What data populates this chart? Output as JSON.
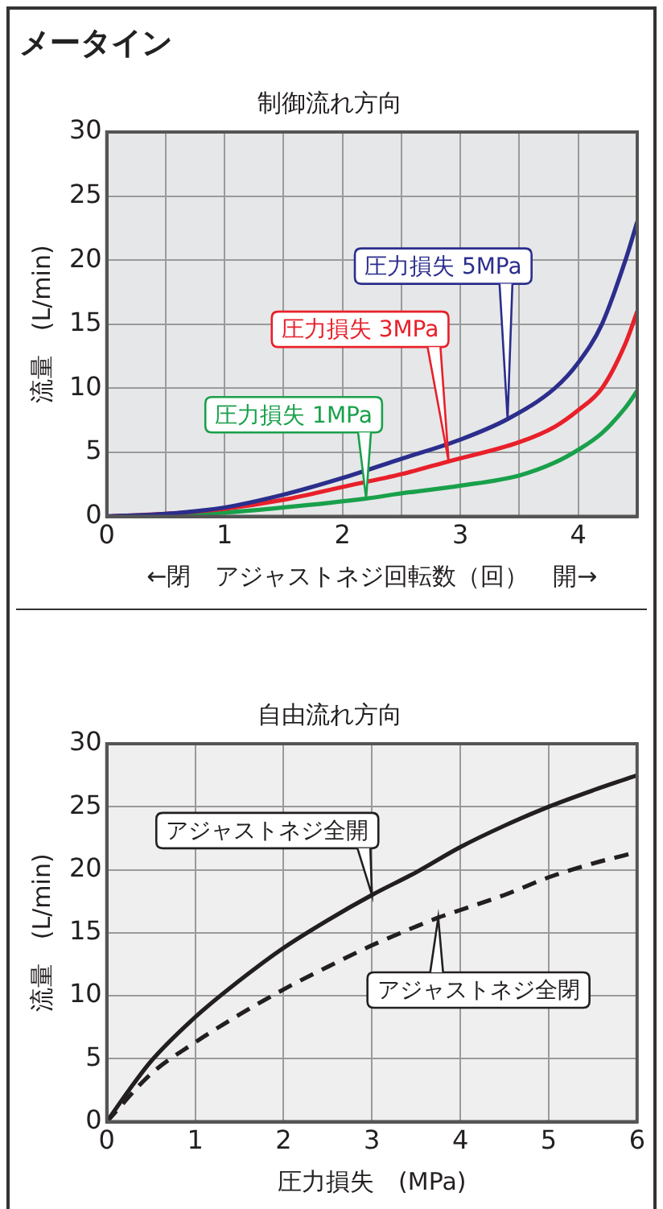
{
  "chart_data": [
    {
      "type": "line",
      "title": "メータイン",
      "subtitle": "制御流れ方向",
      "xlabel": "←閉　アジャストネジ回転数（回）　開→",
      "ylabel": "流量　(L/min)",
      "xlim": [
        0,
        4.5
      ],
      "ylim": [
        0,
        30
      ],
      "xticks": [
        0,
        {
          "value": 0.5,
          "label": null
        },
        1,
        {
          "value": 1.5,
          "label": null
        },
        2,
        {
          "value": 2.5,
          "label": null
        },
        3,
        {
          "value": 3.5,
          "label": null
        },
        4,
        {
          "value": 4.5,
          "label": null
        }
      ],
      "yticks": [
        0,
        5,
        10,
        15,
        20,
        25,
        30
      ],
      "grid": true,
      "legend": false,
      "marker": "none",
      "series": [
        {
          "name": "圧力損失 5MPa",
          "color": "#2b2e8c",
          "x": [
            0,
            0.5,
            1,
            1.5,
            2,
            2.5,
            3,
            3.4,
            3.8,
            4,
            4.2,
            4.4,
            4.5
          ],
          "values": [
            0,
            0.2,
            0.7,
            1.7,
            3.0,
            4.5,
            6.0,
            7.6,
            10,
            12,
            15,
            20,
            23
          ]
        },
        {
          "name": "圧力損失 3MPa",
          "color": "#e8202a",
          "x": [
            0,
            0.5,
            1,
            1.5,
            2,
            2.5,
            2.9,
            3.5,
            3.8,
            4,
            4.2,
            4.4,
            4.5
          ],
          "values": [
            0,
            0.2,
            0.6,
            1.3,
            2.3,
            3.3,
            4.3,
            5.8,
            7,
            8.3,
            10,
            13.5,
            16
          ]
        },
        {
          "name": "圧力損失 1MPa",
          "color": "#19a04b",
          "x": [
            0,
            0.5,
            1,
            1.5,
            2.2,
            2.5,
            3,
            3.5,
            3.8,
            4,
            4.2,
            4.4,
            4.5
          ],
          "values": [
            0,
            0.1,
            0.3,
            0.7,
            1.4,
            1.8,
            2.4,
            3.2,
            4.2,
            5.2,
            6.5,
            8.5,
            9.8
          ]
        }
      ]
    },
    {
      "type": "line",
      "title": "自由流れ方向",
      "xlabel": "圧力損失　(MPa)",
      "ylabel": "流量　(L/min)",
      "xlim": [
        0,
        6
      ],
      "ylim": [
        0,
        30
      ],
      "xticks": [
        0,
        1,
        2,
        3,
        4,
        5,
        6
      ],
      "yticks": [
        0,
        5,
        10,
        15,
        20,
        25,
        30
      ],
      "grid": true,
      "legend": false,
      "marker": "none",
      "series": [
        {
          "name": "アジャストネジ全開",
          "color": "#231f20",
          "line_style": "solid",
          "x": [
            0,
            0.25,
            0.5,
            1,
            1.5,
            2,
            2.5,
            3,
            3.5,
            4,
            4.5,
            5,
            5.5,
            6
          ],
          "values": [
            0,
            2.5,
            4.8,
            8.3,
            11.2,
            13.8,
            16,
            18,
            19.8,
            21.8,
            23.5,
            25,
            26.3,
            27.5
          ]
        },
        {
          "name": "アジャストネジ全閉",
          "color": "#231f20",
          "line_style": "dashed",
          "x": [
            0,
            0.5,
            1,
            1.5,
            2,
            2.5,
            3,
            3.5,
            3.75,
            4,
            4.5,
            5,
            5.5,
            6
          ],
          "values": [
            0,
            3.8,
            6.3,
            8.5,
            10.5,
            12.3,
            14,
            15.5,
            16.2,
            16.8,
            18,
            19.4,
            20.5,
            21.4
          ]
        }
      ]
    }
  ]
}
